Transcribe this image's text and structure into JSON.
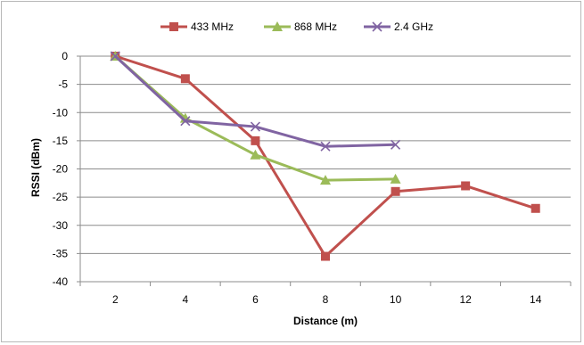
{
  "chart_data": {
    "type": "line",
    "xlabel": "Distance (m)",
    "ylabel": "RSSI (dBm)",
    "x_ticks": [
      2,
      4,
      6,
      8,
      10,
      12,
      14
    ],
    "ylim": [
      -40,
      0
    ],
    "y_ticks": [
      0,
      -5,
      -10,
      -15,
      -20,
      -25,
      -30,
      -35,
      -40
    ],
    "grid": "horizontal",
    "legend_position": "top",
    "series": [
      {
        "name": "433 MHz",
        "color": "#c0504d",
        "marker": "square",
        "x": [
          2,
          4,
          6,
          8,
          10,
          12,
          14
        ],
        "y": [
          0,
          -4,
          -15,
          -35.5,
          -24,
          -23,
          -27
        ]
      },
      {
        "name": "868 MHz",
        "color": "#9bbb59",
        "marker": "triangle",
        "x": [
          2,
          4,
          6,
          8,
          10
        ],
        "y": [
          0,
          -11,
          -17.5,
          -22,
          -21.8
        ]
      },
      {
        "name": "2.4 GHz",
        "color": "#8064a2",
        "marker": "x",
        "x": [
          2,
          4,
          6,
          8,
          10
        ],
        "y": [
          0,
          -11.5,
          -12.5,
          -16,
          -15.7
        ]
      }
    ]
  }
}
